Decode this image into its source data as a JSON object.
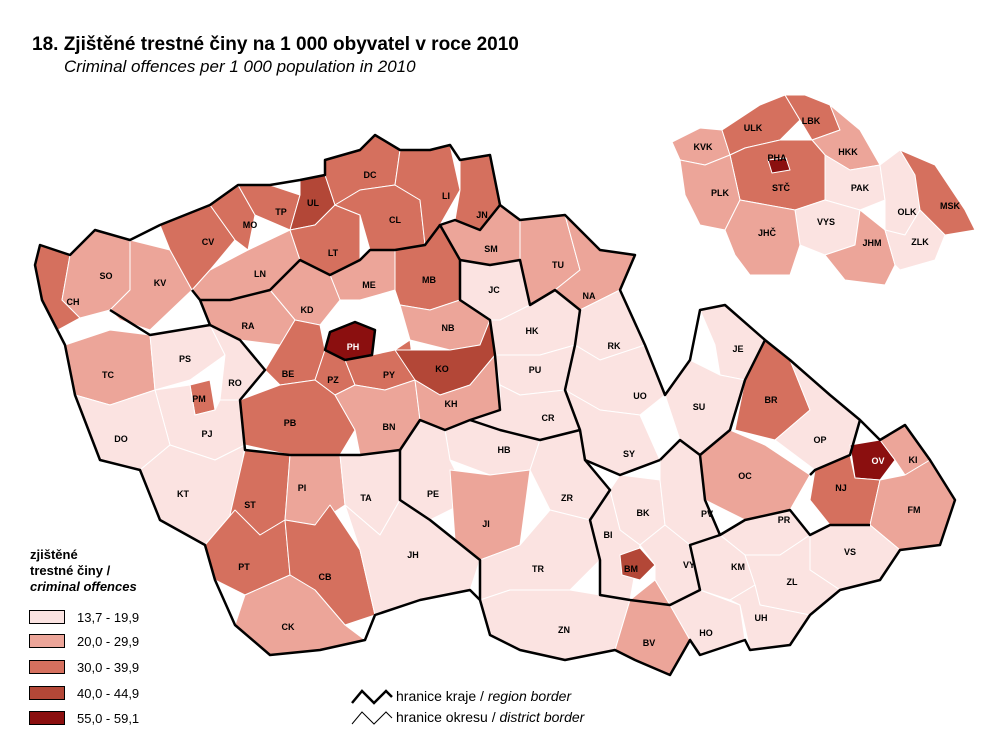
{
  "title": "18. Zjištěné trestné činy na 1 000 obyvatel v roce 2010",
  "subtitle": "Criminal offences per 1 000 population in 2010",
  "legend": {
    "title_cz_1": "zjištěné",
    "title_cz_2": "trestné činy /",
    "title_en": "criminal offences",
    "classes": [
      {
        "range": "13,7 - 19,9",
        "color": "#fbe3e1"
      },
      {
        "range": "20,0 - 29,9",
        "color": "#eca599"
      },
      {
        "range": "30,0 - 39,9",
        "color": "#d5705e"
      },
      {
        "range": "40,0 - 44,9",
        "color": "#b34737"
      },
      {
        "range": "55,0 - 59,1",
        "color": "#8b0f0f"
      }
    ]
  },
  "border_key": {
    "region_cz": "hranice kraje / ",
    "region_en": "region border",
    "district_cz": "hranice okresu / ",
    "district_en": "district border"
  },
  "districts": {
    "CH": "CH",
    "SO": "SO",
    "KV": "KV",
    "CV": "CV",
    "MO": "MO",
    "TP": "TP",
    "UL": "UL",
    "DC": "DC",
    "CL": "CL",
    "LI": "LI",
    "JN": "JN",
    "SM": "SM",
    "LN": "LN",
    "LT": "LT",
    "ME": "ME",
    "MB": "MB",
    "JC": "JC",
    "TU": "TU",
    "NA": "NA",
    "RA": "RA",
    "KD": "KD",
    "NB": "NB",
    "HK": "HK",
    "RK": "RK",
    "TC": "TC",
    "PS": "PS",
    "RO": "RO",
    "PM": "PM",
    "PH": "PH",
    "BE": "BE",
    "PZ": "PZ",
    "PY": "PY",
    "KO": "KO",
    "PU": "PU",
    "JE": "JE",
    "PJ": "PJ",
    "DO": "DO",
    "PB": "PB",
    "BN": "BN",
    "KH": "KH",
    "CR": "CR",
    "UO": "UO",
    "SU": "SU",
    "BR": "BR",
    "HB": "HB",
    "SY": "SY",
    "OP": "OP",
    "OV": "OV",
    "KI": "KI",
    "KT": "KT",
    "PI": "PI",
    "ST": "ST",
    "TA": "TA",
    "PE": "PE",
    "ZR": "ZR",
    "OC": "OC",
    "NJ": "NJ",
    "FM": "FM",
    "JI": "JI",
    "BK": "BK",
    "PV": "PV",
    "PR": "PR",
    "PT": "PT",
    "CB": "CB",
    "JH": "JH",
    "BI": "BI",
    "BM": "BM",
    "VY": "VY",
    "KM": "KM",
    "VS": "VS",
    "TR": "TR",
    "ZL": "ZL",
    "CK": "CK",
    "ZN": "ZN",
    "BV": "BV",
    "HO": "HO",
    "UH": "UH"
  },
  "regions": {
    "KVK": "KVK",
    "ULK": "ULK",
    "LBK": "LBK",
    "HKK": "HKK",
    "PHA": "PHA",
    "STC": "STČ",
    "PLK": "PLK",
    "PAK": "PAK",
    "VYS": "VYS",
    "OLK": "OLK",
    "MSK": "MSK",
    "JHC": "JHČ",
    "JHM": "JHM",
    "ZLK": "ZLK"
  }
}
